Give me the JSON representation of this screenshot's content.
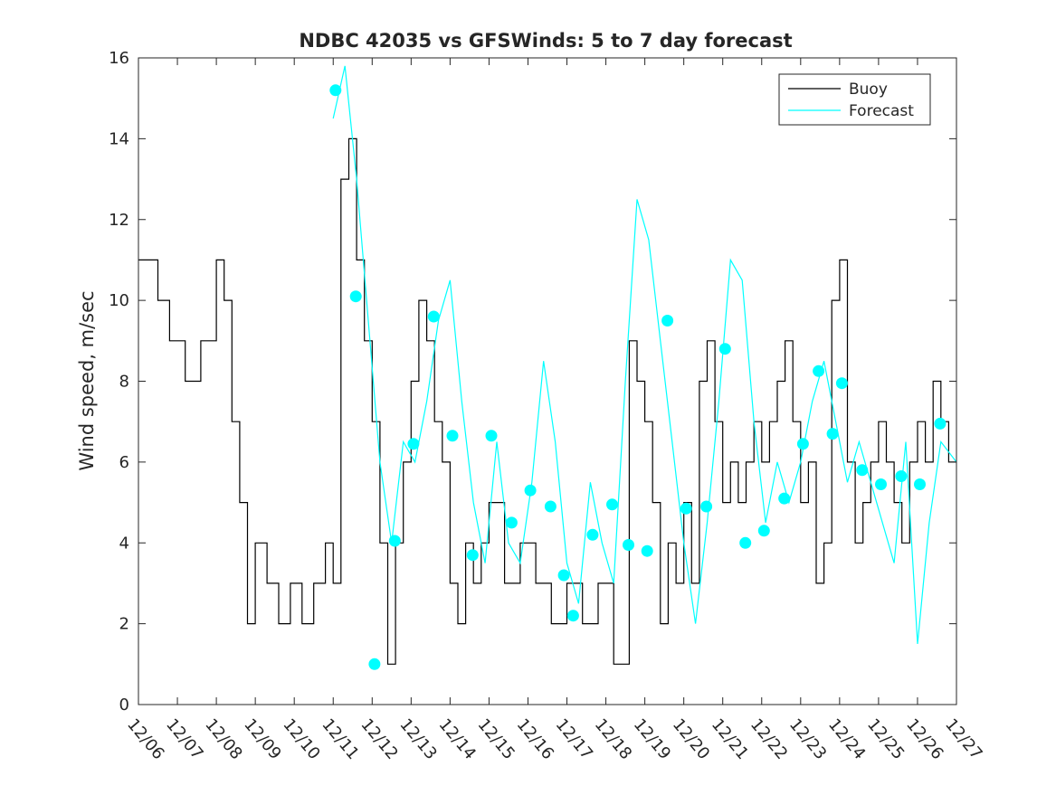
{
  "chart_data": {
    "type": "line",
    "title": "NDBC 42035 vs GFSWinds: 5 to 7 day forecast",
    "xlabel": "",
    "ylabel": "Wind speed, m/sec",
    "xlim": [
      0,
      21
    ],
    "ylim": [
      0,
      16
    ],
    "x_unit": "days since 12/06",
    "yticks": [
      0,
      2,
      4,
      6,
      8,
      10,
      12,
      14,
      16
    ],
    "xticks": [
      0,
      1,
      2,
      3,
      4,
      5,
      6,
      7,
      8,
      9,
      10,
      11,
      12,
      13,
      14,
      15,
      16,
      17,
      18,
      19,
      20,
      21
    ],
    "xtick_labels": [
      "12/06",
      "12/07",
      "12/08",
      "12/09",
      "12/10",
      "12/11",
      "12/12",
      "12/13",
      "12/14",
      "12/15",
      "12/16",
      "12/17",
      "12/18",
      "12/19",
      "12/20",
      "12/21",
      "12/22",
      "12/23",
      "12/24",
      "12/25",
      "12/26",
      "12/27"
    ],
    "grid": false,
    "legend": {
      "location": "top-right",
      "entries": [
        {
          "name": "Buoy",
          "color": "#000000"
        },
        {
          "name": "Forecast",
          "color": "#00ffff"
        }
      ]
    },
    "series": [
      {
        "name": "Buoy",
        "color": "#000000",
        "style": "step",
        "x": [
          0,
          0.5,
          0.8,
          1.2,
          1.6,
          2.0,
          2.2,
          2.4,
          2.6,
          2.8,
          3.0,
          3.3,
          3.6,
          3.9,
          4.2,
          4.5,
          4.8,
          5.0,
          5.2,
          5.4,
          5.6,
          5.8,
          6.0,
          6.2,
          6.4,
          6.6,
          6.8,
          7.0,
          7.2,
          7.4,
          7.6,
          7.8,
          8.0,
          8.2,
          8.4,
          8.6,
          8.8,
          9.0,
          9.4,
          9.8,
          10.2,
          10.6,
          11.0,
          11.4,
          11.8,
          12.2,
          12.6,
          12.8,
          13.0,
          13.2,
          13.4,
          13.6,
          13.8,
          14.0,
          14.2,
          14.4,
          14.6,
          14.8,
          15.0,
          15.2,
          15.4,
          15.6,
          15.8,
          16.0,
          16.2,
          16.4,
          16.6,
          16.8,
          17.0,
          17.2,
          17.4,
          17.6,
          17.8,
          18.0,
          18.2,
          18.4,
          18.6,
          18.8,
          19.0,
          19.2,
          19.4,
          19.6,
          19.8,
          20.0,
          20.2,
          20.4,
          20.6,
          20.8,
          21.0
        ],
        "values": [
          11,
          10,
          9,
          8,
          9,
          11,
          10,
          7,
          5,
          2,
          4,
          3,
          2,
          3,
          2,
          3,
          4,
          3,
          13,
          14,
          11,
          9,
          7,
          4,
          1,
          4,
          6,
          8,
          10,
          9,
          7,
          6,
          3,
          2,
          4,
          3,
          4,
          5,
          3,
          4,
          3,
          2,
          3,
          2,
          3,
          1,
          9,
          8,
          7,
          5,
          2,
          4,
          3,
          5,
          3,
          8,
          9,
          7,
          5,
          6,
          5,
          6,
          7,
          6,
          7,
          8,
          9,
          7,
          5,
          6,
          3,
          4,
          10,
          11,
          6,
          4,
          5,
          6,
          7,
          6,
          5,
          4,
          6,
          7,
          6,
          8,
          7,
          6,
          6
        ]
      },
      {
        "name": "Forecast",
        "color": "#00ffff",
        "style": "line",
        "x": [
          5.0,
          5.3,
          5.6,
          5.9,
          6.2,
          6.5,
          6.8,
          7.1,
          7.4,
          7.7,
          8.0,
          8.3,
          8.6,
          8.9,
          9.2,
          9.5,
          9.8,
          10.1,
          10.4,
          10.7,
          11.0,
          11.3,
          11.6,
          11.9,
          12.2,
          12.5,
          12.8,
          13.1,
          13.4,
          13.7,
          14.0,
          14.3,
          14.6,
          14.9,
          15.2,
          15.5,
          15.8,
          16.1,
          16.4,
          16.7,
          17.0,
          17.3,
          17.6,
          17.9,
          18.2,
          18.5,
          18.8,
          19.1,
          19.4,
          19.7,
          20.0,
          20.3,
          20.6,
          21.0
        ],
        "values": [
          14.5,
          15.8,
          13.0,
          9.5,
          6.0,
          4.0,
          6.5,
          6.0,
          7.5,
          9.5,
          10.5,
          7.5,
          5.0,
          3.5,
          6.5,
          4.0,
          3.5,
          5.5,
          8.5,
          6.5,
          3.5,
          2.5,
          5.5,
          4.0,
          3.0,
          8.0,
          12.5,
          11.5,
          9.0,
          6.5,
          4.0,
          2.0,
          4.5,
          7.5,
          11.0,
          10.5,
          7.0,
          4.5,
          6.0,
          5.0,
          6.0,
          7.5,
          8.5,
          7.0,
          5.5,
          6.5,
          5.5,
          4.5,
          3.5,
          6.5,
          1.5,
          4.5,
          6.5,
          6.0
        ]
      },
      {
        "name": "Forecast (markers)",
        "color": "#00ffff",
        "style": "markers",
        "x": [
          5.06,
          5.58,
          6.06,
          6.58,
          7.06,
          7.58,
          8.06,
          8.58,
          9.06,
          9.58,
          10.06,
          10.58,
          10.92,
          11.16,
          11.66,
          12.16,
          12.58,
          13.06,
          13.58,
          14.06,
          14.58,
          15.06,
          15.58,
          16.06,
          16.58,
          17.06,
          17.46,
          17.82,
          18.06,
          18.58,
          19.06,
          19.58,
          20.06,
          20.58
        ],
        "values": [
          15.2,
          10.1,
          1.0,
          4.05,
          6.45,
          9.6,
          6.65,
          3.7,
          6.65,
          4.5,
          5.3,
          4.9,
          3.2,
          2.2,
          4.2,
          4.95,
          3.95,
          3.8,
          9.5,
          4.85,
          4.9,
          8.8,
          4.0,
          4.3,
          5.1,
          6.45,
          8.25,
          6.7,
          7.95,
          5.8,
          5.45,
          5.65,
          5.45,
          6.95
        ]
      }
    ]
  }
}
